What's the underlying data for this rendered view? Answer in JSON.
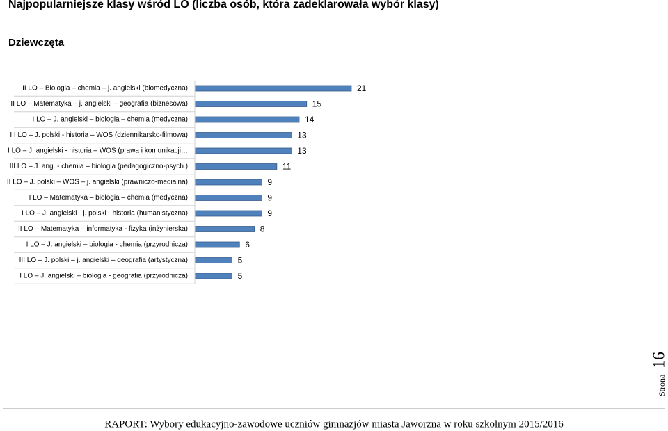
{
  "title": "Najpopularniejsze klasy wśród LO (liczba osób, która zadeklarowała wybór klasy)",
  "subtitle": "Dziewczęta",
  "chart_data": {
    "type": "bar",
    "orientation": "horizontal",
    "color": "#4f81bd",
    "categories": [
      "II LO – Biologia – chemia – j. angielski (biomedyczna)",
      "II LO – Matematyka – j. angielski – geografia (biznesowa)",
      "I LO – J. angielski – biologia – chemia (medyczna)",
      "III LO – J. polski - historia – WOS (dziennikarsko-filmowa)",
      "I LO – J. angielski - historia – WOS (prawa i komunikacji…",
      "III LO – J. ang. - chemia – biologia (pedagogiczno-psych.)",
      "II LO – J. polski – WOS – j. angielski (prawniczo-medialna)",
      "I LO – Matematyka – biologia – chemia (medyczna)",
      "I LO – J. angielski - j. polski - historia (humanistyczna)",
      "II LO – Matematyka – informatyka - fizyka (inżynierska)",
      "I LO – J. angielski – biologia - chemia (przyrodnicza)",
      "III LO – J. polski – j. angielski – geografia (artystyczna)",
      "I LO – J. angielski – biologia - geografia (przyrodnicza)"
    ],
    "values": [
      21,
      15,
      14,
      13,
      13,
      11,
      9,
      9,
      9,
      8,
      6,
      5,
      5
    ]
  },
  "page_label": "Strona",
  "page_number": "16",
  "footer": "RAPORT: Wybory edukacyjno-zawodowe uczniów gimnazjów miasta Jaworzna w roku szkolnym 2015/2016"
}
